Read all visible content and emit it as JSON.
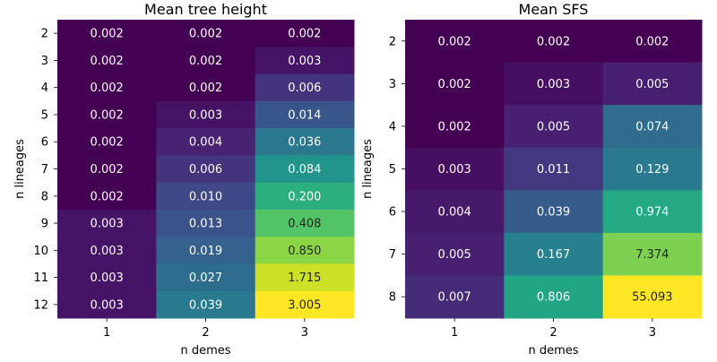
{
  "chart_data": [
    {
      "type": "heatmap",
      "title": "Mean tree height",
      "xlabel": "n demes",
      "ylabel": "n lineages",
      "x": [
        "1",
        "2",
        "3"
      ],
      "y": [
        "2",
        "3",
        "4",
        "5",
        "6",
        "7",
        "8",
        "9",
        "10",
        "11",
        "12"
      ],
      "values": [
        [
          0.002,
          0.002,
          0.002
        ],
        [
          0.002,
          0.002,
          0.003
        ],
        [
          0.002,
          0.002,
          0.006
        ],
        [
          0.002,
          0.003,
          0.014
        ],
        [
          0.002,
          0.004,
          0.036
        ],
        [
          0.002,
          0.006,
          0.084
        ],
        [
          0.002,
          0.01,
          0.2
        ],
        [
          0.003,
          0.013,
          0.408
        ],
        [
          0.003,
          0.019,
          0.85
        ],
        [
          0.003,
          0.027,
          1.715
        ],
        [
          0.003,
          0.039,
          3.005
        ]
      ],
      "labels": [
        [
          "0.002",
          "0.002",
          "0.002"
        ],
        [
          "0.002",
          "0.002",
          "0.003"
        ],
        [
          "0.002",
          "0.002",
          "0.006"
        ],
        [
          "0.002",
          "0.003",
          "0.014"
        ],
        [
          "0.002",
          "0.004",
          "0.036"
        ],
        [
          "0.002",
          "0.006",
          "0.084"
        ],
        [
          "0.002",
          "0.010",
          "0.200"
        ],
        [
          "0.003",
          "0.013",
          "0.408"
        ],
        [
          "0.003",
          "0.019",
          "0.850"
        ],
        [
          "0.003",
          "0.027",
          "1.715"
        ],
        [
          "0.003",
          "0.039",
          "3.005"
        ]
      ],
      "colormap": "viridis",
      "color_scale": "log"
    },
    {
      "type": "heatmap",
      "title": "Mean SFS",
      "xlabel": "n demes",
      "ylabel": "n lineages",
      "x": [
        "1",
        "2",
        "3"
      ],
      "y": [
        "2",
        "3",
        "4",
        "5",
        "6",
        "7",
        "8"
      ],
      "values": [
        [
          0.002,
          0.002,
          0.002
        ],
        [
          0.002,
          0.003,
          0.005
        ],
        [
          0.002,
          0.005,
          0.074
        ],
        [
          0.003,
          0.011,
          0.129
        ],
        [
          0.004,
          0.039,
          0.974
        ],
        [
          0.005,
          0.167,
          7.374
        ],
        [
          0.007,
          0.806,
          55.093
        ]
      ],
      "labels": [
        [
          "0.002",
          "0.002",
          "0.002"
        ],
        [
          "0.002",
          "0.003",
          "0.005"
        ],
        [
          "0.002",
          "0.005",
          "0.074"
        ],
        [
          "0.003",
          "0.011",
          "0.129"
        ],
        [
          "0.004",
          "0.039",
          "0.974"
        ],
        [
          "0.005",
          "0.167",
          "7.374"
        ],
        [
          "0.007",
          "0.806",
          "55.093"
        ]
      ],
      "colormap": "viridis",
      "color_scale": "log"
    }
  ]
}
